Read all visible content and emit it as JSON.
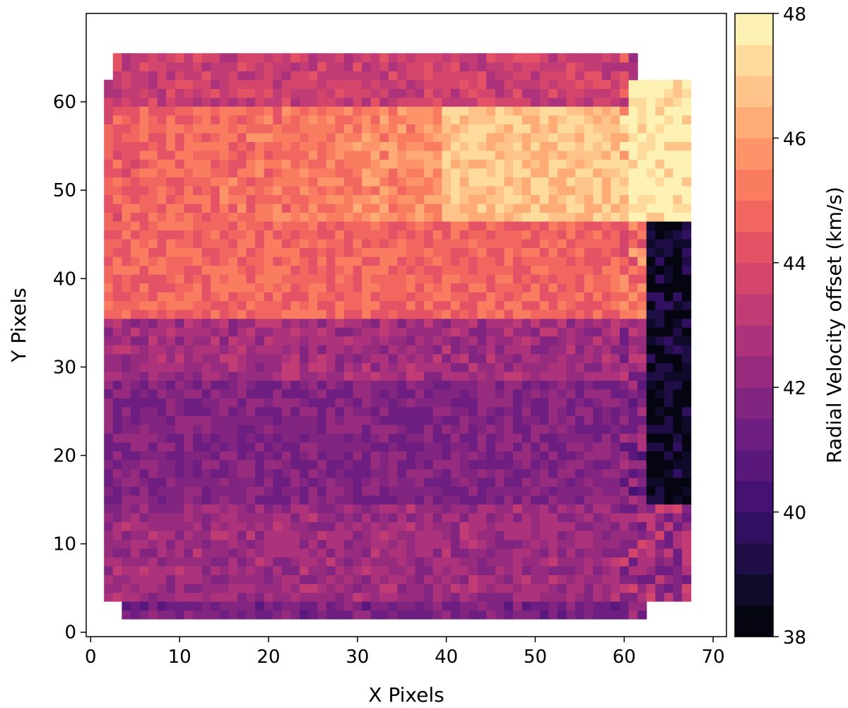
{
  "chart_data": {
    "type": "heatmap",
    "title": "",
    "xlabel": "X Pixels",
    "ylabel": "Y Pixels",
    "xlim": [
      -0.5,
      71.5
    ],
    "ylim": [
      -0.5,
      70
    ],
    "x_ticks": [
      0,
      10,
      20,
      30,
      40,
      50,
      60,
      70
    ],
    "x_tick_labels": [
      "0",
      "10",
      "20",
      "30",
      "40",
      "50",
      "60",
      "70"
    ],
    "y_ticks": [
      0,
      10,
      20,
      30,
      40,
      50,
      60
    ],
    "y_tick_labels": [
      "0",
      "10",
      "20",
      "30",
      "40",
      "50",
      "60"
    ],
    "grid": false,
    "colormap": "magma",
    "colorbar": {
      "label": "Radial Velocity offset (km/s)",
      "min": 38,
      "max": 48,
      "levels": 20,
      "ticks": [
        38,
        40,
        42,
        44,
        46,
        48
      ],
      "tick_labels": [
        "38",
        "40",
        "42",
        "44",
        "46",
        "48"
      ]
    },
    "rows_by_y": [
      {
        "y_range": [
          60,
          65
        ],
        "dominant_value": 43.5,
        "note": "upper edge, pink-magenta with brighter patches near x=40-45"
      },
      {
        "y_range": [
          47,
          59
        ],
        "left_value": 44.5,
        "right_value": 46.5,
        "bright_region_x": [
          40,
          60
        ],
        "bright_value": 46.8
      },
      {
        "y_range": [
          36,
          46
        ],
        "dominant_value": 44.7
      },
      {
        "y_range": [
          29,
          35
        ],
        "dominant_value": 42.5
      },
      {
        "y_range": [
          15,
          28
        ],
        "dominant_value": 41.7
      },
      {
        "y_range": [
          4,
          14
        ],
        "dominant_value": 42.4
      },
      {
        "y_range": [
          2,
          3
        ],
        "dominant_value": 41.5
      }
    ],
    "right_edge_x_range": [
      60,
      67
    ],
    "right_edge_features": [
      {
        "x_range": [
          61,
          67
        ],
        "y_range": [
          47,
          62
        ],
        "value": 48
      },
      {
        "x_range": [
          63,
          67
        ],
        "y_range": [
          15,
          46
        ],
        "value": 38.5
      }
    ]
  }
}
